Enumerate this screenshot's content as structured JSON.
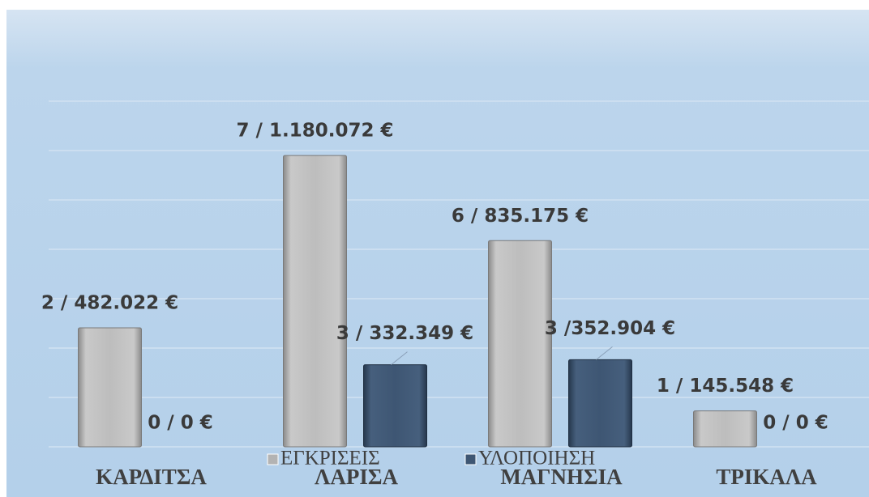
{
  "chart_data": {
    "type": "bar",
    "categories": [
      "ΚΑΡΔΙΤΣΑ",
      "ΛΑΡΙΣΑ",
      "ΜΑΓΝΗΣΙΑ",
      "ΤΡΙΚΑΛΑ"
    ],
    "series": [
      {
        "name": "ΕΓΚΡΙΣΕΙΣ",
        "color": "#b3b3b3",
        "values": [
          482022,
          1180072,
          835175,
          145548
        ],
        "value_labels": [
          "2 / 482.022 €",
          "7 / 1.180.072 €",
          "6 / 835.175 €",
          "1 / 145.548 €"
        ]
      },
      {
        "name": "ΥΛΟΠΟΙΗΣΗ",
        "color": "#3e5673",
        "values": [
          0,
          332349,
          352904,
          0
        ],
        "value_labels": [
          "0 / 0 €",
          "3 / 332.349  €",
          "3 /352.904 €",
          "0 / 0 €"
        ]
      }
    ],
    "ylim": [
      0,
      1800000
    ],
    "yticks": [
      0,
      200000,
      400000,
      600000,
      800000,
      1000000,
      1200000,
      1400000
    ],
    "grid": true
  }
}
